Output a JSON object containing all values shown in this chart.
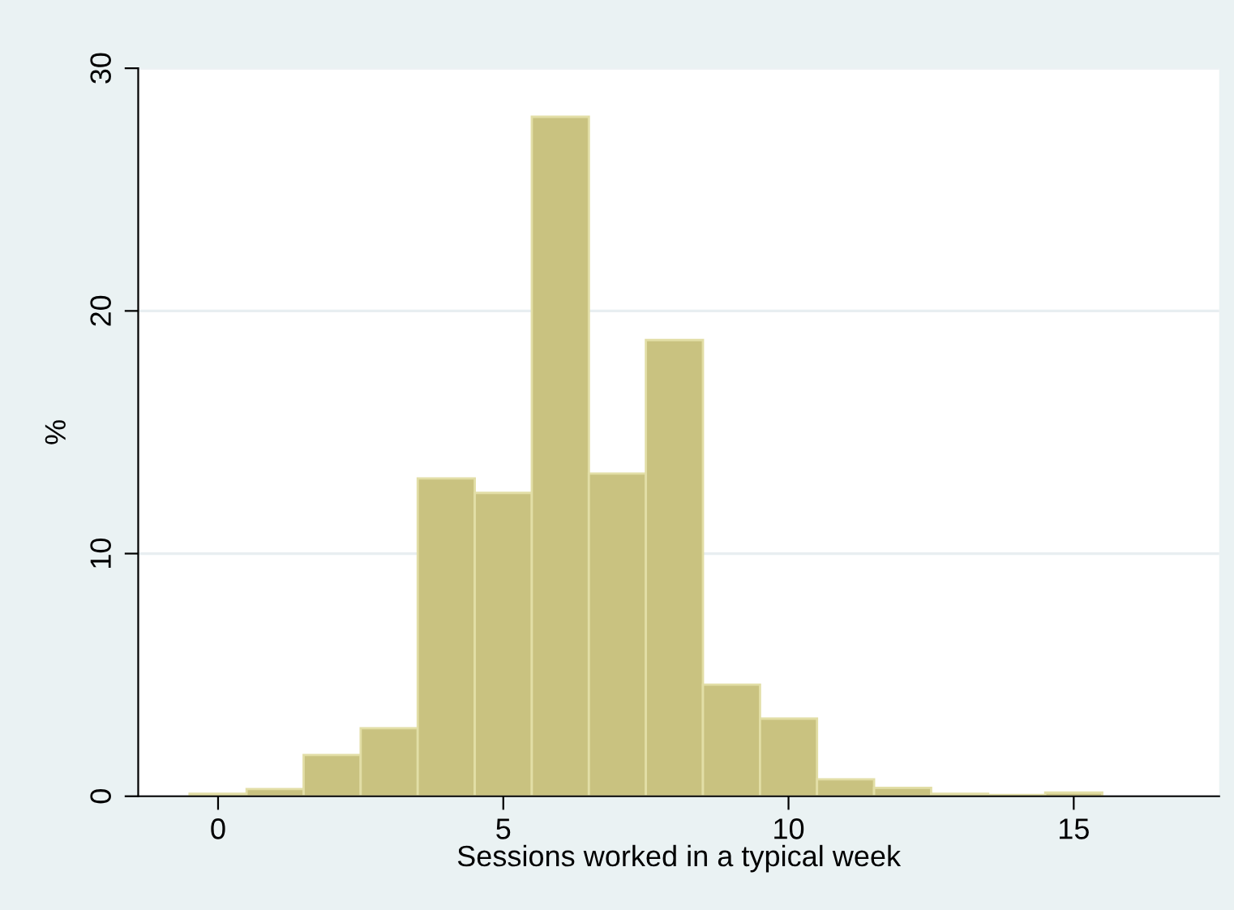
{
  "chart_data": {
    "type": "histogram",
    "xlabel": "Sessions worked in a typical week",
    "ylabel": "%",
    "bins": [
      -0.5,
      0.5,
      1.5,
      2.5,
      3.5,
      4.5,
      5.5,
      6.5,
      7.5,
      8.5,
      9.5,
      10.5,
      11.5,
      12.5,
      13.5,
      14.5,
      15.5
    ],
    "values": [
      0.1,
      0.3,
      1.7,
      2.8,
      13.1,
      12.5,
      28.0,
      13.3,
      18.8,
      4.6,
      3.2,
      0.7,
      0.35,
      0.1,
      0.05,
      0.15
    ],
    "color": "#c9c280",
    "xlim": [
      -1.4,
      17.55
    ],
    "xticks": [
      0,
      5,
      10,
      15
    ],
    "ylim": [
      0,
      30
    ],
    "yticks": [
      0,
      10,
      20,
      30
    ],
    "grid": "y"
  }
}
